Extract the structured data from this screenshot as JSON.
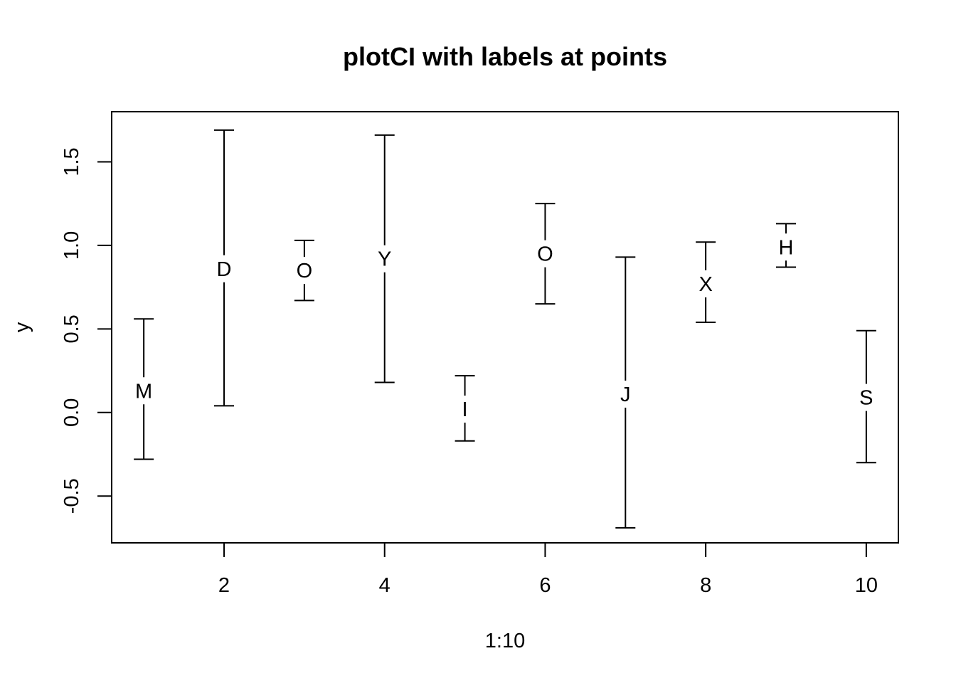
{
  "chart_data": {
    "type": "scatter",
    "title": "plotCI with labels at points",
    "xlabel": "1:10",
    "ylabel": "y",
    "xlim": [
      0.6,
      10.4
    ],
    "ylim": [
      -0.78,
      1.8
    ],
    "x_ticks": [
      2,
      4,
      6,
      8,
      10
    ],
    "x_tick_labels": [
      "2",
      "4",
      "6",
      "8",
      "10"
    ],
    "y_ticks": [
      -0.5,
      0.0,
      0.5,
      1.0,
      1.5
    ],
    "y_tick_labels": [
      "-0.5",
      "0.0",
      "0.5",
      "1.0",
      "1.5"
    ],
    "grid": false,
    "points": [
      {
        "x": 1,
        "y": 0.13,
        "lower": -0.28,
        "upper": 0.56,
        "label": "M"
      },
      {
        "x": 2,
        "y": 0.86,
        "lower": 0.04,
        "upper": 1.69,
        "label": "D"
      },
      {
        "x": 3,
        "y": 0.85,
        "lower": 0.67,
        "upper": 1.03,
        "label": "O"
      },
      {
        "x": 4,
        "y": 0.92,
        "lower": 0.18,
        "upper": 1.66,
        "label": "Y"
      },
      {
        "x": 5,
        "y": 0.02,
        "lower": -0.17,
        "upper": 0.22,
        "label": "I"
      },
      {
        "x": 6,
        "y": 0.95,
        "lower": 0.65,
        "upper": 1.25,
        "label": "O"
      },
      {
        "x": 7,
        "y": 0.11,
        "lower": -0.69,
        "upper": 0.93,
        "label": "J"
      },
      {
        "x": 8,
        "y": 0.77,
        "lower": 0.54,
        "upper": 1.02,
        "label": "X"
      },
      {
        "x": 9,
        "y": 0.99,
        "lower": 0.87,
        "upper": 1.13,
        "label": "H"
      },
      {
        "x": 10,
        "y": 0.09,
        "lower": -0.3,
        "upper": 0.49,
        "label": "S"
      }
    ]
  }
}
